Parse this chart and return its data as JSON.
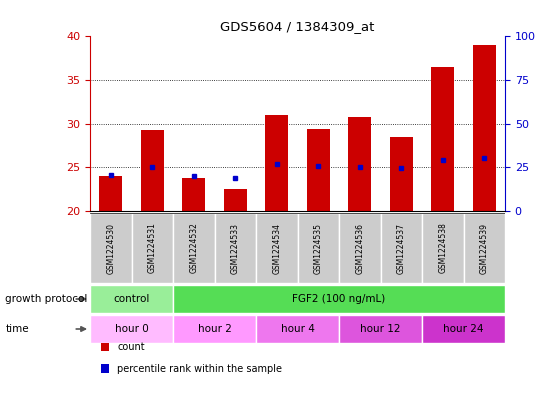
{
  "title": "GDS5604 / 1384309_at",
  "samples": [
    "GSM1224530",
    "GSM1224531",
    "GSM1224532",
    "GSM1224533",
    "GSM1224534",
    "GSM1224535",
    "GSM1224536",
    "GSM1224537",
    "GSM1224538",
    "GSM1224539"
  ],
  "count_values": [
    24.0,
    29.3,
    23.8,
    22.5,
    31.0,
    29.4,
    30.7,
    28.5,
    36.5,
    39.0
  ],
  "count_base": 20.0,
  "percentile_values": [
    24.1,
    25.0,
    24.0,
    23.8,
    25.4,
    25.1,
    25.0,
    24.9,
    25.8,
    26.1
  ],
  "ylim_left": [
    20,
    40
  ],
  "ylim_right": [
    0,
    100
  ],
  "yticks_left": [
    20,
    25,
    30,
    35,
    40
  ],
  "yticks_right": [
    0,
    25,
    50,
    75,
    100
  ],
  "bar_color": "#cc0000",
  "percentile_color": "#0000cc",
  "left_axis_color": "#cc0000",
  "right_axis_color": "#0000cc",
  "sample_box_color": "#cccccc",
  "growth_protocol_label": "growth protocol",
  "growth_protocol_groups": [
    {
      "text": "control",
      "span": [
        0,
        2
      ],
      "color": "#99ee99"
    },
    {
      "text": "FGF2 (100 ng/mL)",
      "span": [
        2,
        10
      ],
      "color": "#55dd55"
    }
  ],
  "time_label": "time",
  "time_groups": [
    {
      "text": "hour 0",
      "span": [
        0,
        2
      ],
      "color": "#ffbbff"
    },
    {
      "text": "hour 2",
      "span": [
        2,
        4
      ],
      "color": "#ff99ff"
    },
    {
      "text": "hour 4",
      "span": [
        4,
        6
      ],
      "color": "#ee77ee"
    },
    {
      "text": "hour 12",
      "span": [
        6,
        8
      ],
      "color": "#dd55dd"
    },
    {
      "text": "hour 24",
      "span": [
        8,
        10
      ],
      "color": "#cc33cc"
    }
  ],
  "legend_items": [
    {
      "color": "#cc0000",
      "label": "count"
    },
    {
      "color": "#0000cc",
      "label": "percentile rank within the sample"
    }
  ]
}
